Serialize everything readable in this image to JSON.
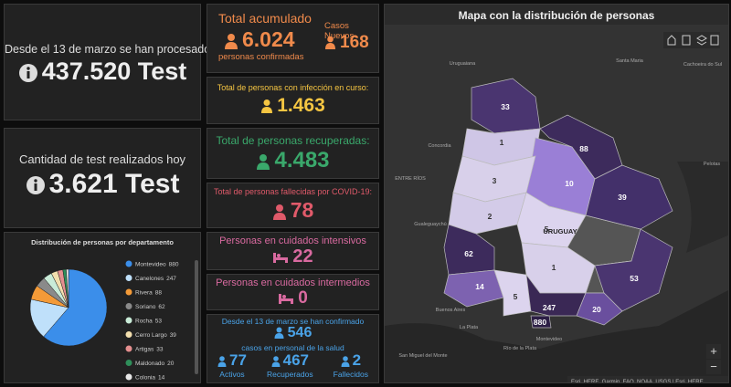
{
  "left": {
    "processed": {
      "label": "Desde el 13 de marzo se han procesado",
      "value": "437.520 Test"
    },
    "today": {
      "label": "Cantidad de test realizados hoy",
      "value": "3.621 Test"
    }
  },
  "chart_data": {
    "type": "pie",
    "title": "Distribución de personas por departamento",
    "categories": [
      "Montevideo",
      "Canelones",
      "Rivera",
      "Soriano",
      "Rocha",
      "Cerro Largo",
      "Artigas",
      "Maldonado",
      "Colonia"
    ],
    "values": [
      880,
      247,
      88,
      62,
      53,
      39,
      33,
      20,
      14
    ],
    "colors": [
      "#3b8eea",
      "#bfe0fa",
      "#f39a38",
      "#8a8a8a",
      "#c9ecd8",
      "#f3dfae",
      "#e58f8f",
      "#2f8f5a",
      "#e8e8e8"
    ]
  },
  "cards": {
    "total": {
      "label": "Total acumulado",
      "value": "6.024",
      "sub": "personas confirmadas",
      "new_label": "Casos Nuevos",
      "new_value": "168"
    },
    "active": {
      "label": "Total de personas con infección en curso:",
      "value": "1.463"
    },
    "recovered": {
      "label": "Total de personas recuperadas:",
      "value": "4.483"
    },
    "deceased": {
      "label": "Total de personas fallecidas por COVID-19:",
      "value": "78"
    },
    "intensive": {
      "label": "Personas en cuidados intensivos",
      "value": "22"
    },
    "intermediate": {
      "label": "Personas en cuidados intermedios",
      "value": "0"
    },
    "health": {
      "label": "Desde el 13 de marzo se han confirmado",
      "value": "546",
      "sub": "casos en personal de la salud",
      "stats": [
        {
          "value": "77",
          "label": "Activos"
        },
        {
          "value": "467",
          "label": "Recuperados"
        },
        {
          "value": "2",
          "label": "Fallecidos"
        }
      ]
    }
  },
  "map": {
    "title": "Mapa con la distribución de personas",
    "departments": [
      "33",
      "1",
      "88",
      "10",
      "3",
      "39",
      "2",
      "5",
      "62",
      "1",
      "53",
      "14",
      "5",
      "247",
      "20",
      "880"
    ],
    "places": [
      "Uruguaiana",
      "Santa Maria",
      "Cachoeira do Sul",
      "ENTRE RÍOS",
      "Concordia",
      "Gualeguaychú",
      "URUGUAY",
      "Pelotas",
      "Buenos Aires",
      "La Plata",
      "San Miguel del Monte",
      "Río de la Plata",
      "Montevideo"
    ],
    "zoom_in": "+",
    "zoom_out": "−",
    "attribution": "Esri, HERE, Garmin, FAO, NOAA, USGS | Esri, HERE..."
  }
}
